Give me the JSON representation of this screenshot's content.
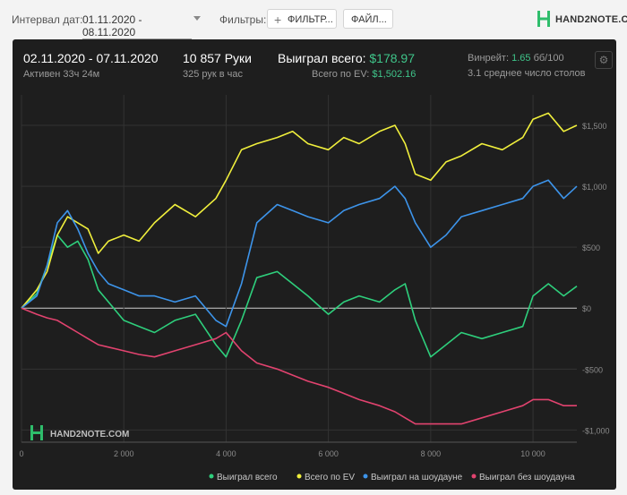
{
  "toolbar": {
    "date_interval_label": "Интервал дат:",
    "date_range_value": "01.11.2020 - 08.11.2020",
    "filters_label": "Фильтры:",
    "filter_button_label": "ФИЛЬТР...",
    "file_button_label": "ФАЙЛ..."
  },
  "brand": {
    "logo_text": "HAND2NOTE.COM",
    "watermark_text": "HAND2NOTE.COM"
  },
  "summary": {
    "date_range": "02.11.2020 - 07.11.2020",
    "active_time": "Активен 33ч 24м",
    "hands": "10 857 Руки",
    "hands_per_hour": "325 рук в час",
    "won_total_label": "Выиграл всего:",
    "won_total_value": "$178.97",
    "ev_total_label": "Всего по EV:",
    "ev_total_value": "$1,502.16",
    "winrate_label": "Винрейт:",
    "winrate_value": "1.65",
    "winrate_unit": "бб/100",
    "avg_tables": "3.1 среднее число столов"
  },
  "colors": {
    "panel_bg": "#1e1e1e",
    "won_total": "#2ecf7c",
    "ev_total": "#f0ef3c",
    "showdown": "#3d94ea",
    "non_showdown": "#e2436f",
    "accent_green": "#3fc58a"
  },
  "chart_data": {
    "type": "line",
    "xlabel": "",
    "ylabel": "",
    "xlim": [
      0,
      10857
    ],
    "ylim": [
      -1100,
      1750
    ],
    "x_ticks": [
      0,
      2000,
      4000,
      6000,
      8000,
      10000
    ],
    "x_tick_labels": [
      "0",
      "2 000",
      "4 000",
      "6 000",
      "8 000",
      "10 000"
    ],
    "y_ticks": [
      1500,
      1000,
      500,
      0,
      -500,
      -1000
    ],
    "y_tick_labels": [
      "$1,500",
      "$1,000",
      "$500",
      "$0",
      "-$500",
      "-$1,000"
    ],
    "grid": true,
    "legend_position": "bottom",
    "x": [
      0,
      300,
      500,
      700,
      900,
      1100,
      1300,
      1500,
      1700,
      2000,
      2300,
      2600,
      3000,
      3400,
      3800,
      4000,
      4300,
      4600,
      5000,
      5300,
      5600,
      6000,
      6300,
      6600,
      7000,
      7300,
      7500,
      7700,
      8000,
      8300,
      8600,
      9000,
      9400,
      9800,
      10000,
      10300,
      10600,
      10857
    ],
    "series": [
      {
        "name": "Выиграл всего",
        "color": "#2ecf7c",
        "values": [
          0,
          120,
          350,
          600,
          500,
          550,
          400,
          150,
          50,
          -100,
          -150,
          -200,
          -100,
          -50,
          -300,
          -400,
          -100,
          250,
          300,
          200,
          100,
          -50,
          50,
          100,
          50,
          150,
          200,
          -100,
          -400,
          -300,
          -200,
          -250,
          -200,
          -150,
          100,
          200,
          100,
          180
        ]
      },
      {
        "name": "Всего по EV",
        "color": "#f0ef3c",
        "values": [
          0,
          150,
          300,
          600,
          750,
          700,
          650,
          450,
          550,
          600,
          550,
          700,
          850,
          750,
          900,
          1050,
          1300,
          1350,
          1400,
          1450,
          1350,
          1300,
          1400,
          1350,
          1450,
          1500,
          1350,
          1100,
          1050,
          1200,
          1250,
          1350,
          1300,
          1400,
          1550,
          1600,
          1450,
          1500
        ]
      },
      {
        "name": "Выиграл на шоудауне",
        "color": "#3d94ea",
        "values": [
          0,
          100,
          350,
          700,
          800,
          650,
          450,
          300,
          200,
          150,
          100,
          100,
          50,
          100,
          -100,
          -150,
          200,
          700,
          850,
          800,
          750,
          700,
          800,
          850,
          900,
          1000,
          900,
          700,
          500,
          600,
          750,
          800,
          850,
          900,
          1000,
          1050,
          900,
          1000
        ]
      },
      {
        "name": "Выиграл без шоудауна",
        "color": "#e2436f",
        "values": [
          0,
          -50,
          -80,
          -100,
          -150,
          -200,
          -250,
          -300,
          -320,
          -350,
          -380,
          -400,
          -350,
          -300,
          -250,
          -200,
          -350,
          -450,
          -500,
          -550,
          -600,
          -650,
          -700,
          -750,
          -800,
          -850,
          -900,
          -950,
          -950,
          -950,
          -950,
          -900,
          -850,
          -800,
          -750,
          -750,
          -800,
          -800
        ]
      }
    ]
  }
}
